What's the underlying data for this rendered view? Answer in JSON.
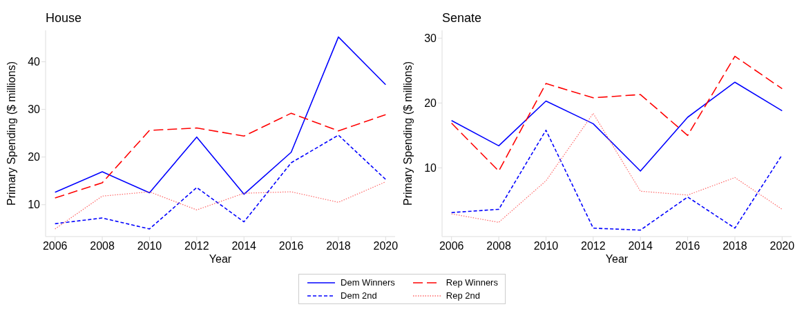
{
  "chart_data": [
    {
      "type": "line",
      "title": "House",
      "xlabel": "Year",
      "ylabel": "Primary Spending ($ millions)",
      "x": [
        2006,
        2008,
        2010,
        2012,
        2014,
        2016,
        2018,
        2020
      ],
      "xlim": [
        2005.6,
        2020.4
      ],
      "xticks": [
        2006,
        2008,
        2010,
        2012,
        2014,
        2016,
        2018,
        2020
      ],
      "ylim": [
        3.3,
        46.6
      ],
      "yticks": [
        10,
        20,
        30,
        40
      ],
      "grid": false,
      "legend": "bottom",
      "marker": "none",
      "series": [
        {
          "name": "Dem Winners",
          "color": "#0000ff",
          "line_style": "solid",
          "values": [
            12.6,
            16.9,
            12.5,
            24.2,
            12.2,
            21.0,
            45.2,
            35.2
          ]
        },
        {
          "name": "Rep Winners",
          "color": "#ff0000",
          "line_style": "dashed",
          "values": [
            11.4,
            14.6,
            25.6,
            26.1,
            24.4,
            29.2,
            25.5,
            28.9
          ]
        },
        {
          "name": "Dem 2nd",
          "color": "#0000ff",
          "line_style": "dashed",
          "values": [
            6.0,
            7.2,
            4.9,
            13.6,
            6.4,
            18.8,
            24.6,
            15.3
          ]
        },
        {
          "name": "Rep 2nd",
          "color": "#ff6666",
          "line_style": "dotted",
          "values": [
            4.9,
            11.8,
            12.7,
            8.9,
            12.4,
            12.7,
            10.5,
            14.8
          ]
        }
      ]
    },
    {
      "type": "line",
      "title": "Senate",
      "xlabel": "Year",
      "ylabel": "Primary Spending ($ millions)",
      "x": [
        2006,
        2008,
        2010,
        2012,
        2014,
        2016,
        2018,
        2020
      ],
      "xlim": [
        2005.6,
        2020.4
      ],
      "xticks": [
        2006,
        2008,
        2010,
        2012,
        2014,
        2016,
        2018,
        2020
      ],
      "ylim": [
        -0.6,
        31.2
      ],
      "yticks": [
        10,
        20,
        30
      ],
      "grid": false,
      "marker": "none",
      "series": [
        {
          "color": "#0000ff",
          "line_style": "solid",
          "values": [
            17.3,
            13.4,
            20.3,
            16.8,
            9.5,
            17.8,
            23.2,
            18.8
          ]
        },
        {
          "color": "#ff0000",
          "line_style": "dashed",
          "values": [
            16.9,
            9.5,
            23.0,
            20.8,
            21.3,
            15.0,
            27.2,
            22.2
          ]
        },
        {
          "color": "#0000ff",
          "line_style": "dashed",
          "values": [
            3.1,
            3.6,
            15.8,
            0.7,
            0.4,
            5.5,
            0.7,
            12.0
          ]
        },
        {
          "color": "#ff6666",
          "line_style": "dotted",
          "values": [
            2.9,
            1.6,
            8.0,
            18.4,
            6.4,
            5.8,
            8.5,
            3.6
          ]
        }
      ]
    }
  ]
}
